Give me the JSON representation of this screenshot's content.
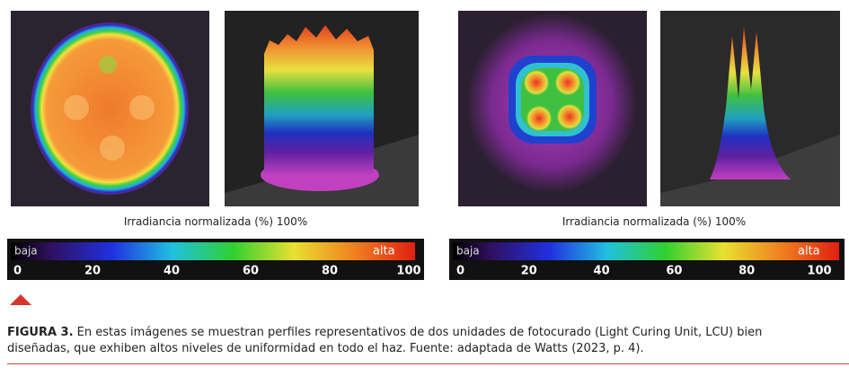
{
  "figure": {
    "panels": [
      {
        "label": "Irradiancia normalizada (%) 100%",
        "colorbar": {
          "low": "baja",
          "high": "alta",
          "ticks": [
            0,
            20,
            40,
            60,
            80,
            100
          ]
        }
      },
      {
        "label": "Irradiancia normalizada (%) 100%",
        "colorbar": {
          "low": "baja",
          "high": "alta",
          "ticks": [
            0,
            20,
            40,
            60,
            80,
            100
          ]
        }
      }
    ],
    "caption": {
      "label": "FIGURA 3.",
      "text": "En estas imágenes se muestran perfiles representativos de dos unidades de fotocurado (Light Curing Unit, LCU) bien diseñadas, que exhiben altos niveles de uniformidad en todo el haz. Fuente: adaptada de Watts (2023, p. 4)."
    }
  }
}
